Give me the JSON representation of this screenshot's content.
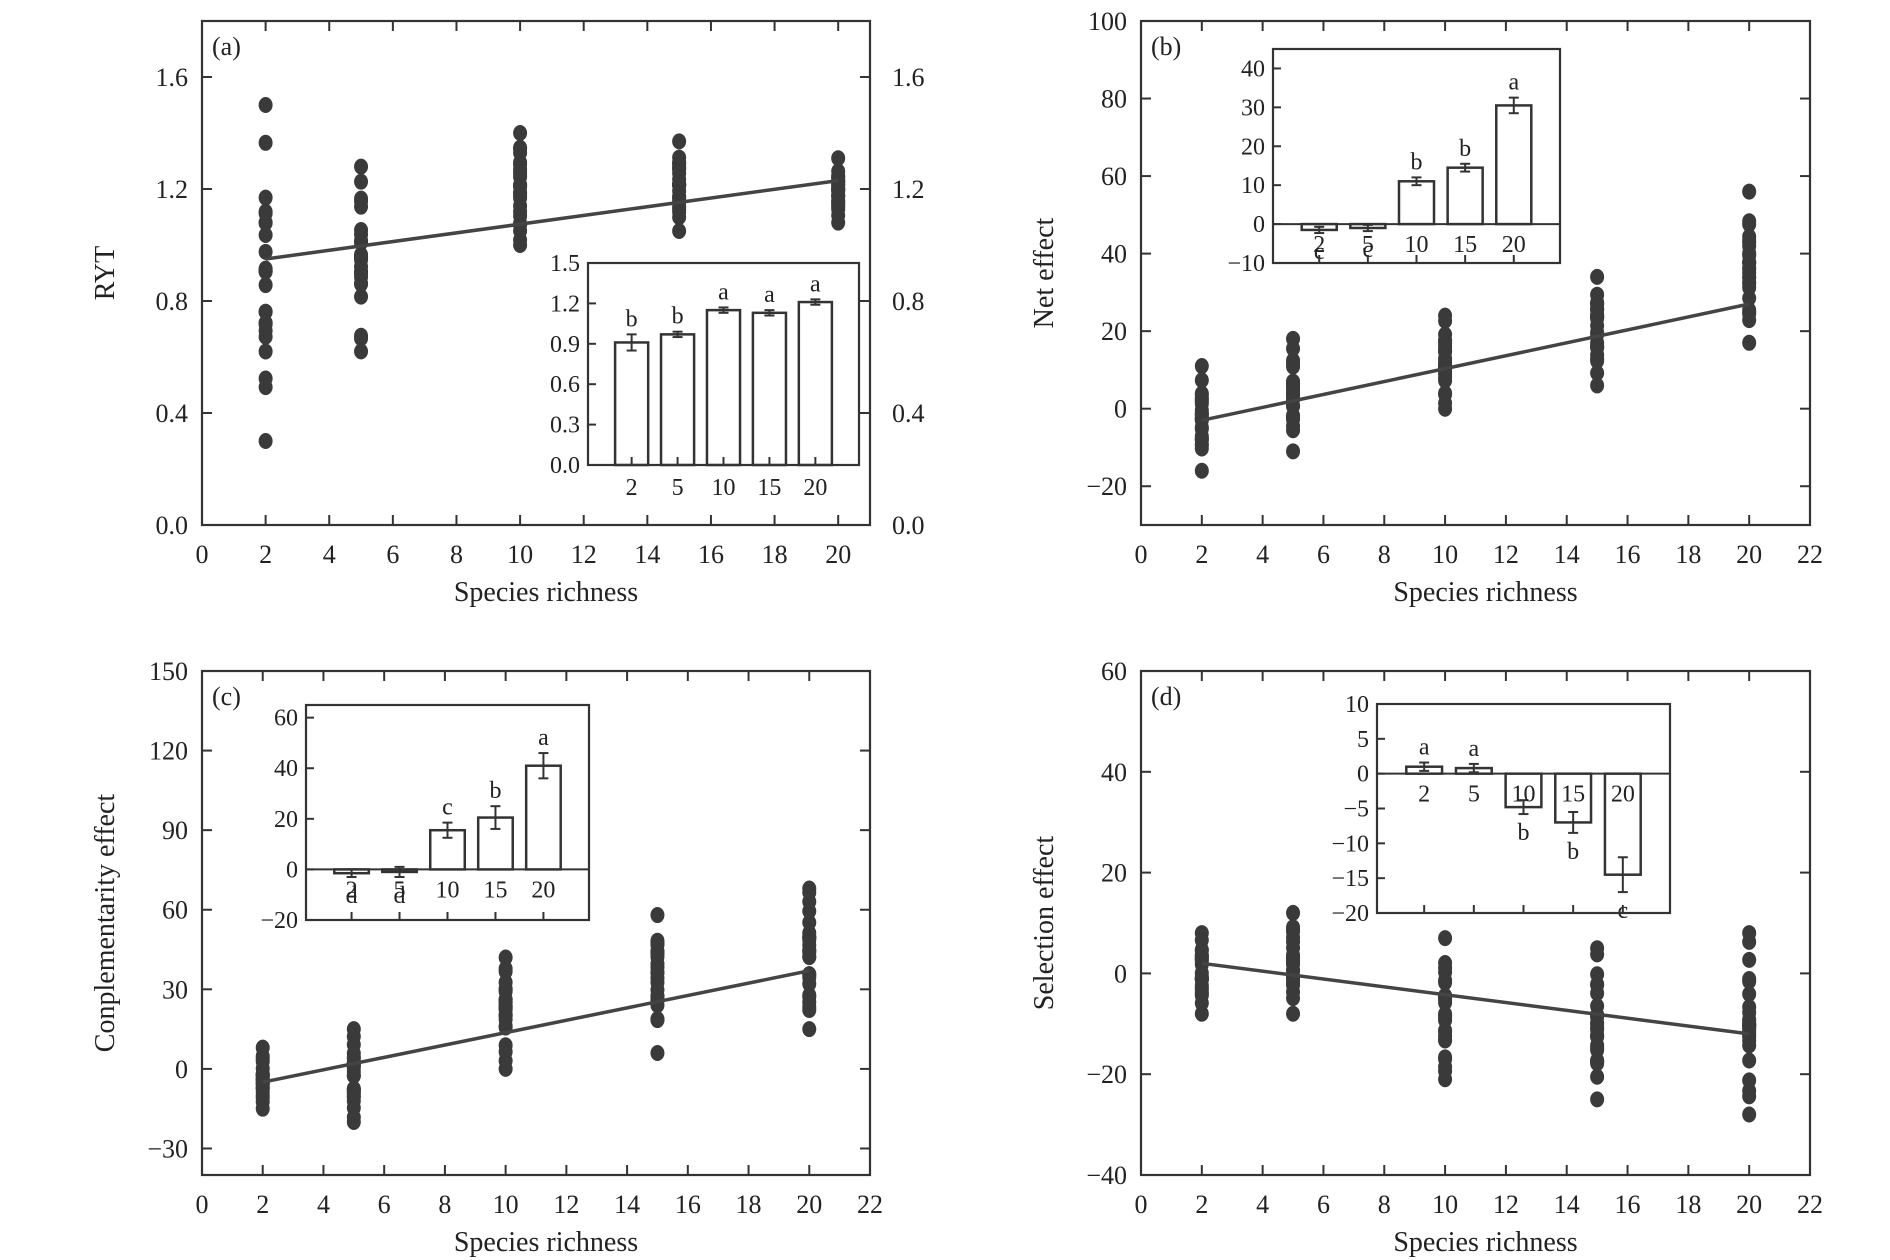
{
  "chart_data": [
    {
      "panel": "(a)",
      "type": "scatter",
      "xlabel": "Species richness",
      "ylabel": "RYT",
      "xlim": [
        0,
        21
      ],
      "ylim": [
        0,
        1.8
      ],
      "xticks": [
        0,
        2,
        4,
        6,
        8,
        10,
        12,
        14,
        16,
        18,
        20
      ],
      "yticks": [
        0.0,
        0.4,
        0.8,
        1.2,
        1.6
      ],
      "ytick_labels": [
        "0.0",
        "0.4",
        "0.8",
        "1.2",
        "1.6"
      ],
      "right_axis": true,
      "regression": {
        "x": [
          2,
          20
        ],
        "y": [
          0.95,
          1.23
        ]
      },
      "points": [
        {
          "x": 2,
          "min": 0.3,
          "max": 1.5
        },
        {
          "x": 5,
          "min": 0.62,
          "max": 1.28
        },
        {
          "x": 10,
          "min": 1.0,
          "max": 1.4
        },
        {
          "x": 15,
          "min": 1.05,
          "max": 1.37
        },
        {
          "x": 20,
          "min": 1.08,
          "max": 1.31
        }
      ],
      "inset": {
        "type": "bar",
        "categories": [
          "2",
          "5",
          "10",
          "15",
          "20"
        ],
        "values": [
          0.91,
          0.97,
          1.15,
          1.13,
          1.21
        ],
        "errors": [
          0.06,
          0.02,
          0.02,
          0.02,
          0.02
        ],
        "letters": [
          "b",
          "b",
          "a",
          "a",
          "a"
        ],
        "ylim": [
          0,
          1.5
        ],
        "yticks": [
          0.0,
          0.3,
          0.6,
          0.9,
          1.2,
          1.5
        ],
        "ytick_labels": [
          "0.0",
          "0.3",
          "0.6",
          "0.9",
          "1.2",
          "1.5"
        ]
      }
    },
    {
      "panel": "(b)",
      "type": "scatter",
      "xlabel": "Species richness",
      "ylabel": "Net effect",
      "xlim": [
        0,
        22
      ],
      "ylim": [
        -30,
        100
      ],
      "xticks": [
        0,
        2,
        4,
        6,
        8,
        10,
        12,
        14,
        16,
        18,
        20,
        22
      ],
      "yticks": [
        -20,
        0,
        20,
        40,
        60,
        80,
        100
      ],
      "ytick_labels": [
        "−20",
        "0",
        "20",
        "40",
        "60",
        "80",
        "100"
      ],
      "right_axis": false,
      "regression": {
        "x": [
          2,
          20
        ],
        "y": [
          -3,
          27
        ]
      },
      "points": [
        {
          "x": 2,
          "min": -16,
          "max": 11
        },
        {
          "x": 5,
          "min": -11,
          "max": 18
        },
        {
          "x": 10,
          "min": 0,
          "max": 24
        },
        {
          "x": 15,
          "min": 6,
          "max": 34
        },
        {
          "x": 20,
          "min": 17,
          "max": 56
        }
      ],
      "inset": {
        "type": "bar",
        "categories": [
          "2",
          "5",
          "10",
          "15",
          "20"
        ],
        "values": [
          -1.5,
          -1.0,
          11.0,
          14.5,
          30.5
        ],
        "errors": [
          0.8,
          0.8,
          1.0,
          1.0,
          2.0
        ],
        "letters": [
          "c",
          "c",
          "b",
          "b",
          "a"
        ],
        "ylim": [
          -10,
          45
        ],
        "yticks": [
          -10,
          0,
          10,
          20,
          30,
          40
        ],
        "ytick_labels": [
          "−10",
          "0",
          "10",
          "20",
          "30",
          "40"
        ]
      }
    },
    {
      "panel": "(c)",
      "type": "scatter",
      "xlabel": "Species richness",
      "ylabel": "Conplementarity effect",
      "xlim": [
        0,
        22
      ],
      "ylim": [
        -40,
        150
      ],
      "xticks": [
        0,
        2,
        4,
        6,
        8,
        10,
        12,
        14,
        16,
        18,
        20,
        22
      ],
      "yticks": [
        -30,
        0,
        30,
        60,
        90,
        120,
        150
      ],
      "ytick_labels": [
        "−30",
        "0",
        "30",
        "60",
        "90",
        "120",
        "150"
      ],
      "right_axis": false,
      "regression": {
        "x": [
          2,
          20
        ],
        "y": [
          -5,
          37
        ]
      },
      "points": [
        {
          "x": 2,
          "min": -15,
          "max": 8
        },
        {
          "x": 5,
          "min": -20,
          "max": 15
        },
        {
          "x": 10,
          "min": 0,
          "max": 42
        },
        {
          "x": 15,
          "min": 6,
          "max": 58
        },
        {
          "x": 20,
          "min": 15,
          "max": 68
        }
      ],
      "inset": {
        "type": "bar",
        "categories": [
          "2",
          "5",
          "10",
          "15",
          "20"
        ],
        "values": [
          -1.5,
          -1.0,
          15.5,
          20.5,
          41.0
        ],
        "errors": [
          1.5,
          2.0,
          3.0,
          4.5,
          5.0
        ],
        "letters": [
          "d",
          "d",
          "c",
          "b",
          "a"
        ],
        "ylim": [
          -20,
          65
        ],
        "yticks": [
          -20,
          0,
          20,
          40,
          60
        ],
        "ytick_labels": [
          "−20",
          "0",
          "20",
          "40",
          "60"
        ]
      }
    },
    {
      "panel": "(d)",
      "type": "scatter",
      "xlabel": "Species richness",
      "ylabel": "Selection effect",
      "xlim": [
        0,
        22
      ],
      "ylim": [
        -40,
        60
      ],
      "xticks": [
        0,
        2,
        4,
        6,
        8,
        10,
        12,
        14,
        16,
        18,
        20,
        22
      ],
      "yticks": [
        -40,
        -20,
        0,
        20,
        40,
        60
      ],
      "ytick_labels": [
        "−40",
        "−20",
        "0",
        "20",
        "40",
        "60"
      ],
      "right_axis": false,
      "regression": {
        "x": [
          2,
          20
        ],
        "y": [
          2,
          -12
        ]
      },
      "points": [
        {
          "x": 2,
          "min": -8,
          "max": 8
        },
        {
          "x": 5,
          "min": -8,
          "max": 12
        },
        {
          "x": 10,
          "min": -21,
          "max": 7
        },
        {
          "x": 15,
          "min": -25,
          "max": 5
        },
        {
          "x": 20,
          "min": -28,
          "max": 8
        }
      ],
      "inset": {
        "type": "bar",
        "categories": [
          "2",
          "5",
          "10",
          "15",
          "20"
        ],
        "values": [
          1.0,
          0.8,
          -4.8,
          -7.0,
          -14.5
        ],
        "errors": [
          0.6,
          0.6,
          1.0,
          1.5,
          2.5
        ],
        "letters": [
          "a",
          "a",
          "b",
          "b",
          "c"
        ],
        "ylim": [
          -20,
          10
        ],
        "yticks": [
          -20,
          -15,
          -10,
          -5,
          0,
          5,
          10
        ],
        "ytick_labels": [
          "−20",
          "−15",
          "−10",
          "−5",
          "0",
          "5",
          "10"
        ]
      }
    }
  ]
}
